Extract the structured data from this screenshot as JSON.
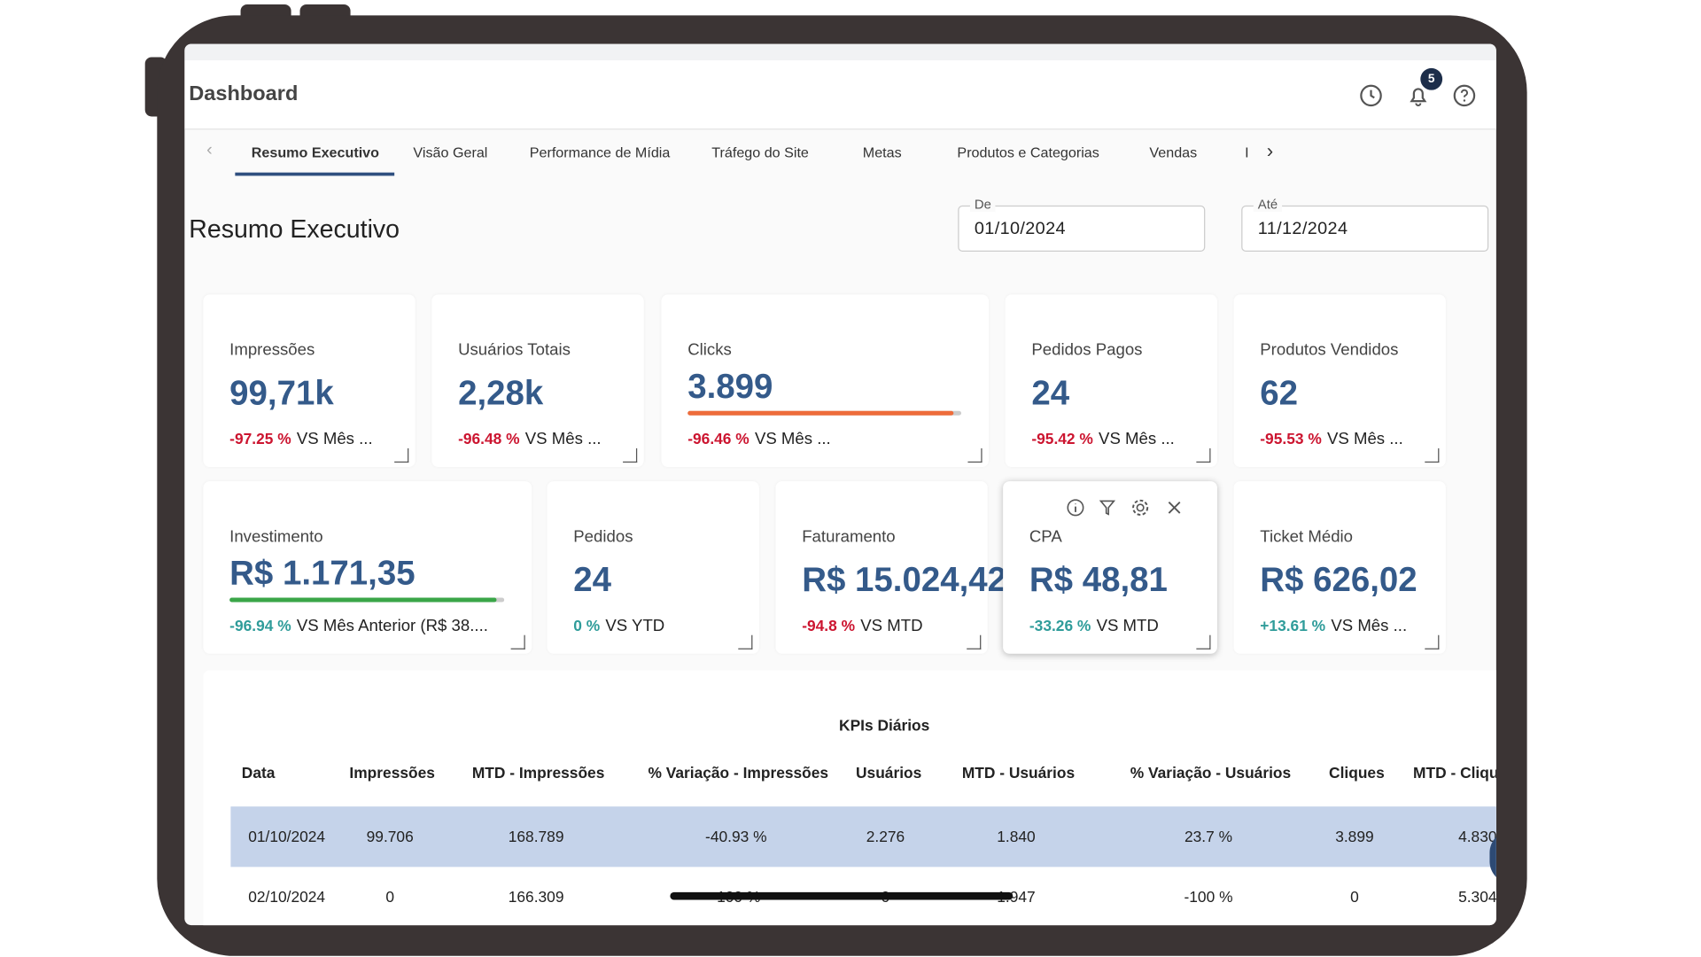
{
  "header": {
    "title": "Dashboard",
    "notification_count": "5"
  },
  "tabs": {
    "items": [
      "Resumo Executivo",
      "Visão Geral",
      "Performance de Mídia",
      "Tráfego do Site",
      "Metas",
      "Produtos e Categorias",
      "Vendas",
      "I"
    ],
    "active": 0
  },
  "page_title": "Resumo Executivo",
  "date_range": {
    "from_label": "De",
    "from": "01/10/2024",
    "to_label": "Até",
    "to": "11/12/2024"
  },
  "cards": [
    {
      "label": "Impressões",
      "value": "99,71k",
      "change": "-97.25 %",
      "comparison": "VS Mês ...",
      "trend": "negative"
    },
    {
      "label": "Usuários Totais",
      "value": "2,28k",
      "change": "-96.48 %",
      "comparison": "VS Mês ...",
      "trend": "negative"
    },
    {
      "label": "Clicks",
      "value": "3.899",
      "change": "-96.46 %",
      "comparison": "VS Mês ...",
      "trend": "negative",
      "bar_color": "#ee6c3b"
    },
    {
      "label": "Pedidos Pagos",
      "value": "24",
      "change": "-95.42 %",
      "comparison": "VS Mês ...",
      "trend": "negative"
    },
    {
      "label": "Produtos Vendidos",
      "value": "62",
      "change": "-95.53 %",
      "comparison": "VS Mês ...",
      "trend": "negative"
    },
    {
      "label": "Investimento",
      "value": "R$ 1.171,35",
      "change": "-96.94 %",
      "comparison": "VS Mês Anterior (R$ 38....",
      "trend": "positive",
      "bar_color": "#3aa648"
    },
    {
      "label": "Pedidos",
      "value": "24",
      "change": "0 %",
      "comparison": "VS YTD",
      "trend": "positive"
    },
    {
      "label": "Faturamento",
      "value": "R$ 15.024,42",
      "change": "-94.8 %",
      "comparison": "VS MTD",
      "trend": "negative"
    },
    {
      "label": "CPA",
      "value": "R$ 48,81",
      "change": "-33.26 %",
      "comparison": "VS MTD",
      "trend": "positive",
      "selected": true
    },
    {
      "label": "Ticket Médio",
      "value": "R$ 626,02",
      "change": "+13.61 %",
      "comparison": "VS Mês ...",
      "trend": "positive"
    }
  ],
  "table": {
    "title": "KPIs Diários",
    "columns": [
      "Data",
      "Impressões",
      "MTD - Impressões",
      "% Variação - Impressões",
      "Usuários",
      "MTD - Usuários",
      "% Variação - Usuários",
      "Cliques",
      "MTD - Cliques"
    ],
    "rows": [
      [
        "01/10/2024",
        "99.706",
        "168.789",
        "-40.93 %",
        "2.276",
        "1.840",
        "23.7 %",
        "3.899",
        "4.830"
      ],
      [
        "02/10/2024",
        "0",
        "166.309",
        "-100 %",
        "0",
        "1.947",
        "-100 %",
        "0",
        "5.304"
      ]
    ]
  }
}
